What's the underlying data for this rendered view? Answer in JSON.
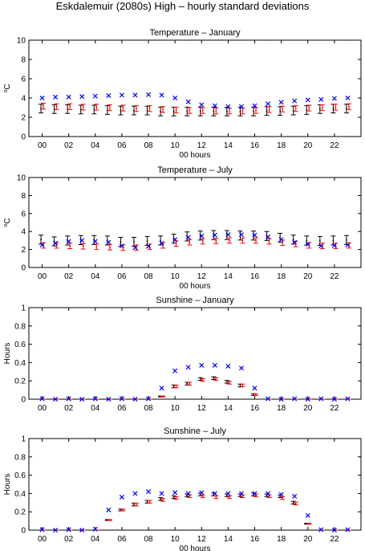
{
  "figure": {
    "title": "Eskdalemuir (2080s) High – hourly standard deviations",
    "colors": {
      "black_series": "#000000",
      "red_series": "#ff0000",
      "blue_series": "#0000ff",
      "axis": "#000000"
    }
  },
  "chart_data": [
    {
      "type": "scatter",
      "title": "Temperature – January",
      "xlabel": "00 hours",
      "ylabel": "°C",
      "ylabel_base": "o",
      "ylabel_unit": "C",
      "xlim": [
        -1,
        24
      ],
      "ylim": [
        0,
        10
      ],
      "xticks": [
        0,
        2,
        4,
        6,
        8,
        10,
        12,
        14,
        16,
        18,
        20,
        22
      ],
      "xtick_labels": [
        "00",
        "02",
        "04",
        "06",
        "08",
        "10",
        "12",
        "14",
        "16",
        "18",
        "20",
        "22"
      ],
      "yticks": [
        0,
        2,
        4,
        6,
        8,
        10
      ],
      "ytick_labels": [
        "0",
        "2",
        "4",
        "6",
        "8",
        "10"
      ],
      "x": [
        0,
        1,
        2,
        3,
        4,
        5,
        6,
        7,
        8,
        9,
        10,
        11,
        12,
        13,
        14,
        15,
        16,
        17,
        18,
        19,
        20,
        21,
        22,
        23
      ],
      "series": [
        {
          "marker": "errorbar",
          "color": "#000000",
          "values": [
            2.9,
            2.85,
            2.85,
            2.8,
            2.8,
            2.75,
            2.7,
            2.7,
            2.7,
            2.6,
            2.6,
            2.6,
            2.6,
            2.6,
            2.6,
            2.6,
            2.6,
            2.65,
            2.65,
            2.7,
            2.75,
            2.85,
            2.9,
            2.9
          ],
          "errors": [
            0.45,
            0.45,
            0.45,
            0.45,
            0.45,
            0.45,
            0.45,
            0.45,
            0.45,
            0.45,
            0.45,
            0.45,
            0.45,
            0.45,
            0.45,
            0.45,
            0.45,
            0.45,
            0.45,
            0.45,
            0.45,
            0.45,
            0.45,
            0.45
          ]
        },
        {
          "marker": "errorbar",
          "color": "#ff0000",
          "values": [
            3.15,
            3.1,
            3.1,
            3.05,
            3.05,
            3.0,
            2.95,
            2.9,
            2.9,
            2.8,
            2.75,
            2.7,
            2.7,
            2.65,
            2.65,
            2.65,
            2.7,
            2.8,
            2.85,
            2.9,
            2.95,
            3.0,
            3.05,
            3.1
          ],
          "errors": [
            0.3,
            0.3,
            0.3,
            0.3,
            0.3,
            0.3,
            0.3,
            0.3,
            0.3,
            0.3,
            0.3,
            0.3,
            0.3,
            0.3,
            0.3,
            0.3,
            0.3,
            0.3,
            0.3,
            0.3,
            0.3,
            0.3,
            0.3,
            0.3
          ]
        },
        {
          "marker": "x",
          "color": "#0000ff",
          "values": [
            4.0,
            4.1,
            4.1,
            4.15,
            4.2,
            4.25,
            4.3,
            4.3,
            4.35,
            4.3,
            4.0,
            3.6,
            3.3,
            3.2,
            3.1,
            3.1,
            3.2,
            3.4,
            3.55,
            3.7,
            3.8,
            3.85,
            3.95,
            4.0
          ]
        }
      ]
    },
    {
      "type": "scatter",
      "title": "Temperature – July",
      "xlabel": "00 hours",
      "ylabel": "°C",
      "ylabel_base": "o",
      "ylabel_unit": "C",
      "xlim": [
        -1,
        24
      ],
      "ylim": [
        0,
        10
      ],
      "xticks": [
        0,
        2,
        4,
        6,
        8,
        10,
        12,
        14,
        16,
        18,
        20,
        22
      ],
      "xtick_labels": [
        "00",
        "02",
        "04",
        "06",
        "08",
        "10",
        "12",
        "14",
        "16",
        "18",
        "20",
        "22"
      ],
      "yticks": [
        0,
        2,
        4,
        6,
        8,
        10
      ],
      "ytick_labels": [
        "0",
        "2",
        "4",
        "6",
        "8",
        "10"
      ],
      "x": [
        0,
        1,
        2,
        3,
        4,
        5,
        6,
        7,
        8,
        9,
        10,
        11,
        12,
        13,
        14,
        15,
        16,
        17,
        18,
        19,
        20,
        21,
        22,
        23
      ],
      "series": [
        {
          "marker": "errorbar",
          "color": "#000000",
          "values": [
            3.1,
            2.9,
            3.0,
            3.05,
            3.05,
            3.0,
            2.85,
            2.85,
            2.95,
            3.0,
            3.2,
            3.45,
            3.55,
            3.6,
            3.6,
            3.55,
            3.55,
            3.5,
            3.3,
            3.1,
            3.0,
            2.95,
            3.0,
            3.05
          ],
          "errors": [
            0.5,
            0.5,
            0.5,
            0.5,
            0.5,
            0.5,
            0.5,
            0.5,
            0.5,
            0.5,
            0.5,
            0.5,
            0.5,
            0.5,
            0.5,
            0.5,
            0.5,
            0.5,
            0.5,
            0.5,
            0.5,
            0.5,
            0.5,
            0.5
          ]
        },
        {
          "marker": "errorbar",
          "color": "#ff0000",
          "values": [
            2.45,
            2.45,
            2.4,
            2.35,
            2.3,
            2.25,
            2.2,
            2.2,
            2.3,
            2.45,
            2.65,
            2.8,
            2.9,
            2.95,
            3.0,
            3.0,
            3.0,
            2.9,
            2.75,
            2.6,
            2.45,
            2.4,
            2.4,
            2.45
          ],
          "errors": [
            0.3,
            0.3,
            0.3,
            0.3,
            0.3,
            0.3,
            0.3,
            0.3,
            0.3,
            0.3,
            0.3,
            0.3,
            0.3,
            0.3,
            0.3,
            0.3,
            0.3,
            0.3,
            0.3,
            0.3,
            0.3,
            0.3,
            0.3,
            0.3
          ]
        },
        {
          "marker": "x",
          "color": "#0000ff",
          "values": [
            2.5,
            2.7,
            2.9,
            3.0,
            2.9,
            2.8,
            2.4,
            2.2,
            2.35,
            2.7,
            3.1,
            3.35,
            3.5,
            3.6,
            3.65,
            3.65,
            3.6,
            3.4,
            3.1,
            2.8,
            2.6,
            2.4,
            2.45,
            2.5
          ]
        }
      ]
    },
    {
      "type": "scatter",
      "title": "Sunshine – January",
      "xlabel": "",
      "ylabel": "Hours",
      "xlim": [
        -1,
        24
      ],
      "ylim": [
        0,
        1
      ],
      "xticks": [
        0,
        2,
        4,
        6,
        8,
        10,
        12,
        14,
        16,
        18,
        20,
        22
      ],
      "xtick_labels": [
        "00",
        "02",
        "04",
        "06",
        "08",
        "10",
        "12",
        "14",
        "16",
        "18",
        "20",
        "22"
      ],
      "yticks": [
        0,
        0.2,
        0.4,
        0.6,
        0.8,
        1
      ],
      "ytick_labels": [
        "0",
        "0.2",
        "0.4",
        "0.6",
        "0.8",
        "1"
      ],
      "x": [
        0,
        1,
        2,
        3,
        4,
        5,
        6,
        7,
        8,
        9,
        10,
        11,
        12,
        13,
        14,
        15,
        16,
        17,
        18,
        19,
        20,
        21,
        22,
        23
      ],
      "series": [
        {
          "marker": "errorbar",
          "color": "#000000",
          "values": [
            0,
            0,
            0,
            0,
            0,
            0,
            0,
            0,
            0,
            0.03,
            0.14,
            0.17,
            0.22,
            0.23,
            0.19,
            0.15,
            0.05,
            0,
            0,
            0,
            0,
            0,
            0,
            0
          ],
          "errors": [
            0,
            0,
            0,
            0,
            0,
            0,
            0,
            0,
            0,
            0.005,
            0.015,
            0.015,
            0.015,
            0.015,
            0.015,
            0.015,
            0.01,
            0,
            0,
            0,
            0,
            0,
            0,
            0
          ]
        },
        {
          "marker": "errorbar",
          "color": "#ff0000",
          "values": [
            0,
            0,
            0,
            0,
            0,
            0,
            0,
            0,
            0,
            0.03,
            0.14,
            0.17,
            0.21,
            0.22,
            0.18,
            0.15,
            0.05,
            0,
            0,
            0,
            0,
            0,
            0,
            0
          ],
          "errors": [
            0,
            0,
            0,
            0,
            0,
            0,
            0,
            0,
            0,
            0.005,
            0.015,
            0.015,
            0.015,
            0.015,
            0.015,
            0.015,
            0.01,
            0,
            0,
            0,
            0,
            0,
            0,
            0
          ]
        },
        {
          "marker": "x",
          "color": "#0000ff",
          "values": [
            0.005,
            0,
            0.005,
            0,
            0.005,
            0,
            0.005,
            0,
            0.005,
            0.12,
            0.31,
            0.35,
            0.37,
            0.37,
            0.36,
            0.34,
            0.12,
            0.005,
            0,
            0.005,
            0,
            0.005,
            0,
            0.005
          ]
        }
      ]
    },
    {
      "type": "scatter",
      "title": "Sunshine – July",
      "xlabel": "00 hours",
      "ylabel": "Hours",
      "xlim": [
        -1,
        24
      ],
      "ylim": [
        0,
        1
      ],
      "xticks": [
        0,
        2,
        4,
        6,
        8,
        10,
        12,
        14,
        16,
        18,
        20,
        22
      ],
      "xtick_labels": [
        "00",
        "02",
        "04",
        "06",
        "08",
        "10",
        "12",
        "14",
        "16",
        "18",
        "20",
        "22"
      ],
      "yticks": [
        0,
        0.2,
        0.4,
        0.6,
        0.8,
        1
      ],
      "ytick_labels": [
        "0",
        "0.2",
        "0.4",
        "0.6",
        "0.8",
        "1"
      ],
      "x": [
        0,
        1,
        2,
        3,
        4,
        5,
        6,
        7,
        8,
        9,
        10,
        11,
        12,
        13,
        14,
        15,
        16,
        17,
        18,
        19,
        20,
        21,
        22,
        23
      ],
      "series": [
        {
          "marker": "errorbar",
          "color": "#000000",
          "values": [
            0,
            0,
            0,
            0,
            0,
            0.11,
            0.22,
            0.28,
            0.31,
            0.34,
            0.36,
            0.38,
            0.39,
            0.39,
            0.38,
            0.38,
            0.39,
            0.38,
            0.37,
            0.3,
            0.07,
            0,
            0,
            0
          ],
          "errors": [
            0,
            0,
            0,
            0,
            0,
            0.005,
            0.01,
            0.015,
            0.015,
            0.015,
            0.015,
            0.015,
            0.015,
            0.015,
            0.015,
            0.015,
            0.015,
            0.015,
            0.015,
            0.015,
            0.005,
            0,
            0,
            0
          ]
        },
        {
          "marker": "errorbar",
          "color": "#ff0000",
          "values": [
            0,
            0,
            0,
            0,
            0,
            0.11,
            0.22,
            0.28,
            0.31,
            0.33,
            0.35,
            0.37,
            0.37,
            0.36,
            0.36,
            0.37,
            0.38,
            0.37,
            0.35,
            0.29,
            0.07,
            0,
            0,
            0
          ],
          "errors": [
            0,
            0,
            0,
            0,
            0,
            0.005,
            0.01,
            0.015,
            0.015,
            0.015,
            0.015,
            0.015,
            0.015,
            0.015,
            0.015,
            0.015,
            0.015,
            0.015,
            0.015,
            0.015,
            0.005,
            0,
            0,
            0
          ]
        },
        {
          "marker": "x",
          "color": "#0000ff",
          "values": [
            0.005,
            0,
            0.005,
            0,
            0.01,
            0.22,
            0.36,
            0.4,
            0.42,
            0.4,
            0.41,
            0.4,
            0.41,
            0.4,
            0.4,
            0.4,
            0.4,
            0.4,
            0.39,
            0.37,
            0.16,
            0.005,
            0,
            0.005
          ]
        }
      ]
    }
  ]
}
